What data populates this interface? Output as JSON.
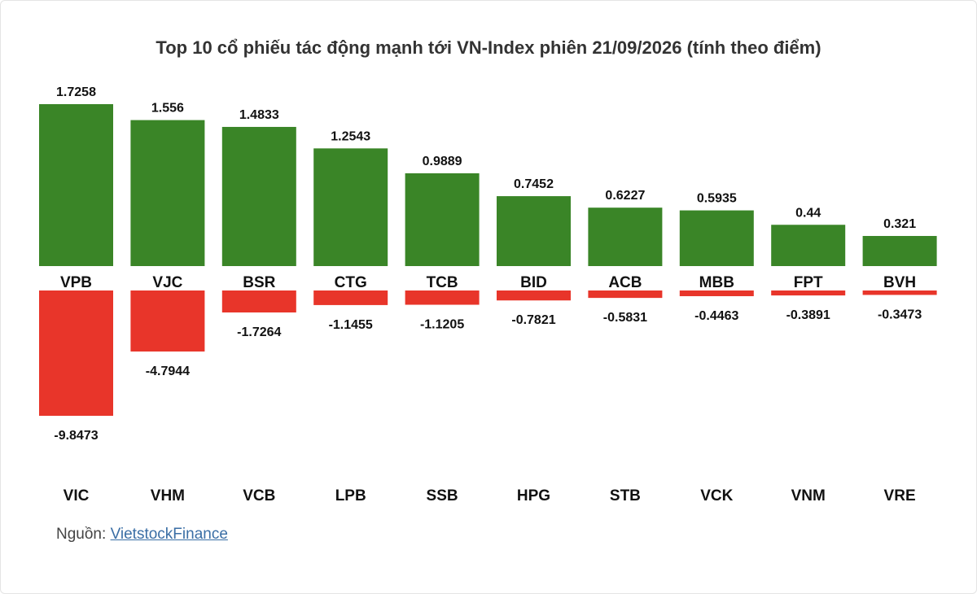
{
  "chart_data": {
    "type": "bar",
    "title": "Top 10 cổ phiếu tác động mạnh tới VN-Index phiên 21/09/2026 (tính theo điểm)",
    "series": [
      {
        "categories": [
          "VPB",
          "VJC",
          "BSR",
          "CTG",
          "TCB",
          "BID",
          "ACB",
          "MBB",
          "FPT",
          "BVH"
        ],
        "values": [
          1.7258,
          1.556,
          1.4833,
          1.2543,
          0.9889,
          0.7452,
          0.6227,
          0.5935,
          0.44,
          0.321
        ],
        "color": "#3a8527"
      },
      {
        "categories": [
          "VIC",
          "VHM",
          "VCB",
          "LPB",
          "SSB",
          "HPG",
          "STB",
          "VCK",
          "VNM",
          "VRE"
        ],
        "values": [
          -9.8473,
          -4.7944,
          -1.7264,
          -1.1455,
          -1.1205,
          -0.7821,
          -0.5831,
          -0.4463,
          -0.3891,
          -0.3473
        ],
        "color": "#e8352a"
      }
    ],
    "grid": false,
    "legend": "none"
  },
  "source": {
    "label": "Nguồn:",
    "link_text": "VietstockFinance"
  },
  "colors": {
    "positive": "#3a8527",
    "negative": "#e8352a",
    "text": "#111111",
    "link": "#3a6ea5"
  }
}
